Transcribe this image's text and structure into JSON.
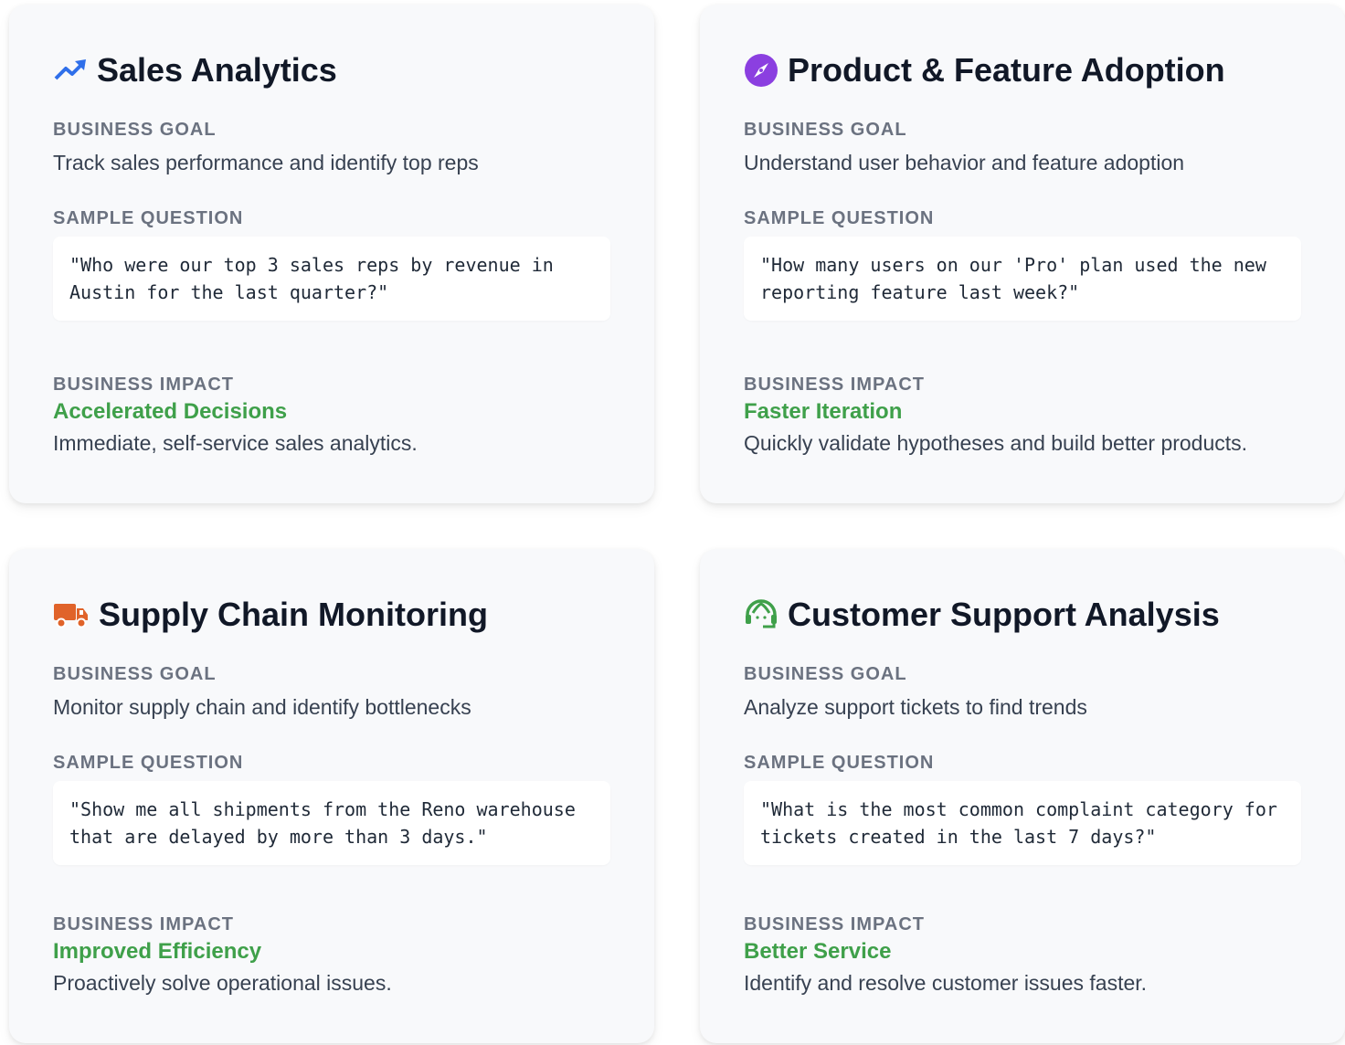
{
  "labels": {
    "goal": "BUSINESS GOAL",
    "question": "SAMPLE QUESTION",
    "impact": "BUSINESS IMPACT"
  },
  "colors": {
    "impact": "#3fa04a",
    "sales_icon": "#2f6fea",
    "product_icon": "#8b3fe0",
    "supply_icon": "#e0632a",
    "support_icon": "#3fa04a"
  },
  "cards": [
    {
      "icon": "trending-up-icon",
      "title": "Sales Analytics",
      "goal": "Track sales performance and identify top reps",
      "question": "\"Who were our top 3 sales reps by revenue in Austin for the last quarter?\"",
      "impact_title": "Accelerated Decisions",
      "impact_desc": "Immediate, self-service sales analytics."
    },
    {
      "icon": "compass-icon",
      "title": "Product & Feature Adoption",
      "goal": "Understand user behavior and feature adoption",
      "question": "\"How many users on our 'Pro' plan used the new reporting feature last week?\"",
      "impact_title": "Faster Iteration",
      "impact_desc": "Quickly validate hypotheses and build better products."
    },
    {
      "icon": "truck-icon",
      "title": "Supply Chain Monitoring",
      "goal": "Monitor supply chain and identify bottlenecks",
      "question": "\"Show me all shipments from the Reno warehouse that are delayed by more than 3 days.\"",
      "impact_title": "Improved Efficiency",
      "impact_desc": "Proactively solve operational issues."
    },
    {
      "icon": "headset-icon",
      "title": "Customer Support Analysis",
      "goal": "Analyze support tickets to find trends",
      "question": "\"What is the most common complaint category for tickets created in the last 7 days?\"",
      "impact_title": "Better Service",
      "impact_desc": "Identify and resolve customer issues faster."
    }
  ]
}
